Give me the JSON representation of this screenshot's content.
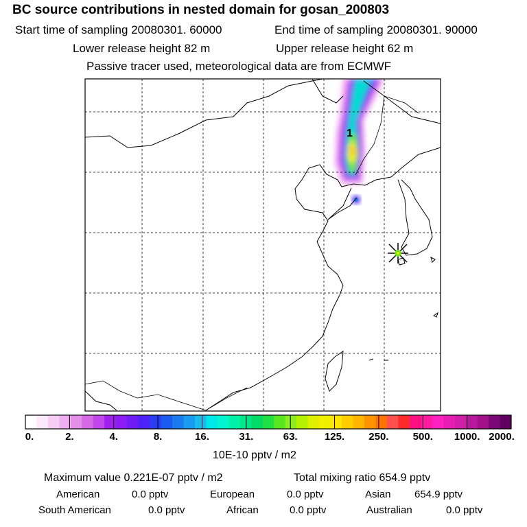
{
  "header": {
    "title": "BC  source contributions in nested domain for gosan_200803",
    "start_label": "Start time of sampling 20080301. 60000",
    "end_label": "End time of sampling 20080301. 90000",
    "lower_label": "Lower release height   82 m",
    "upper_label": "Upper release height   62 m",
    "info": "Passive tracer used, meteorological data are from ECMWF"
  },
  "map": {
    "marker_label": "1",
    "station_marker": "star-icon"
  },
  "colorbar": {
    "ticks": [
      "0.",
      "2.",
      "4.",
      "8.",
      "16.",
      "31.",
      "63.",
      "125.",
      "250.",
      "500.",
      "1000.",
      "2000."
    ],
    "unit": "10E-10 pptv / m2",
    "colors": [
      "#ffffff",
      "#fbe8fb",
      "#f5cdf5",
      "#efb0ef",
      "#e38fe8",
      "#d46ae6",
      "#c047ea",
      "#a020f0",
      "#8c1cf5",
      "#6f1cf7",
      "#4c22f5",
      "#2b3cf5",
      "#1c5bf0",
      "#1a7cf0",
      "#1a9cf0",
      "#1abcf0",
      "#00e8e8",
      "#00f5d0",
      "#00f0a8",
      "#00e68c",
      "#00dc64",
      "#1ee040",
      "#5ae61e",
      "#8cee1e",
      "#b4f000",
      "#dcf000",
      "#f0f000",
      "#ffe600",
      "#ffcc00",
      "#ffb400",
      "#ff9400",
      "#ff7400",
      "#ff5050",
      "#ff2a2a",
      "#ff1080",
      "#ff1aa0",
      "#ff20c0",
      "#e81eb4",
      "#d01ea8",
      "#b8189c",
      "#a01088",
      "#7c0878",
      "#600060"
    ]
  },
  "stats": {
    "maximum": "Maximum value  0.221E-07 pptv / m2",
    "total": "Total mixing ratio       654.9 pptv",
    "rows": [
      [
        {
          "name": "American",
          "value": "0.0 pptv"
        },
        {
          "name": "European",
          "value": "0.0 pptv"
        },
        {
          "name": "Asian",
          "value": "654.9 pptv"
        }
      ],
      [
        {
          "name": "South American",
          "value": "0.0 pptv"
        },
        {
          "name": "African",
          "value": "0.0 pptv"
        },
        {
          "name": "Australian",
          "value": "0.0 pptv"
        }
      ]
    ]
  }
}
